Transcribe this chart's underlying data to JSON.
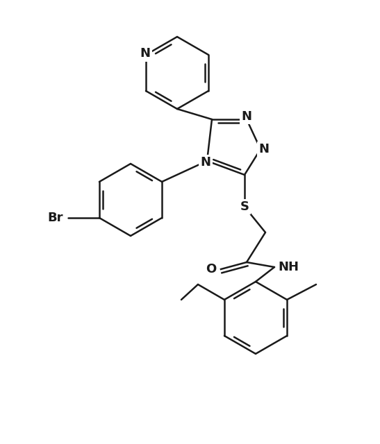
{
  "figsize": [
    5.47,
    6.4
  ],
  "dpi": 100,
  "background_color": "#ffffff",
  "line_color": "#1a1a1a",
  "line_width": 1.8,
  "font_size": 13,
  "font_family": "Arial",
  "xlim": [
    0,
    5.47
  ],
  "ylim": [
    0,
    6.4
  ]
}
